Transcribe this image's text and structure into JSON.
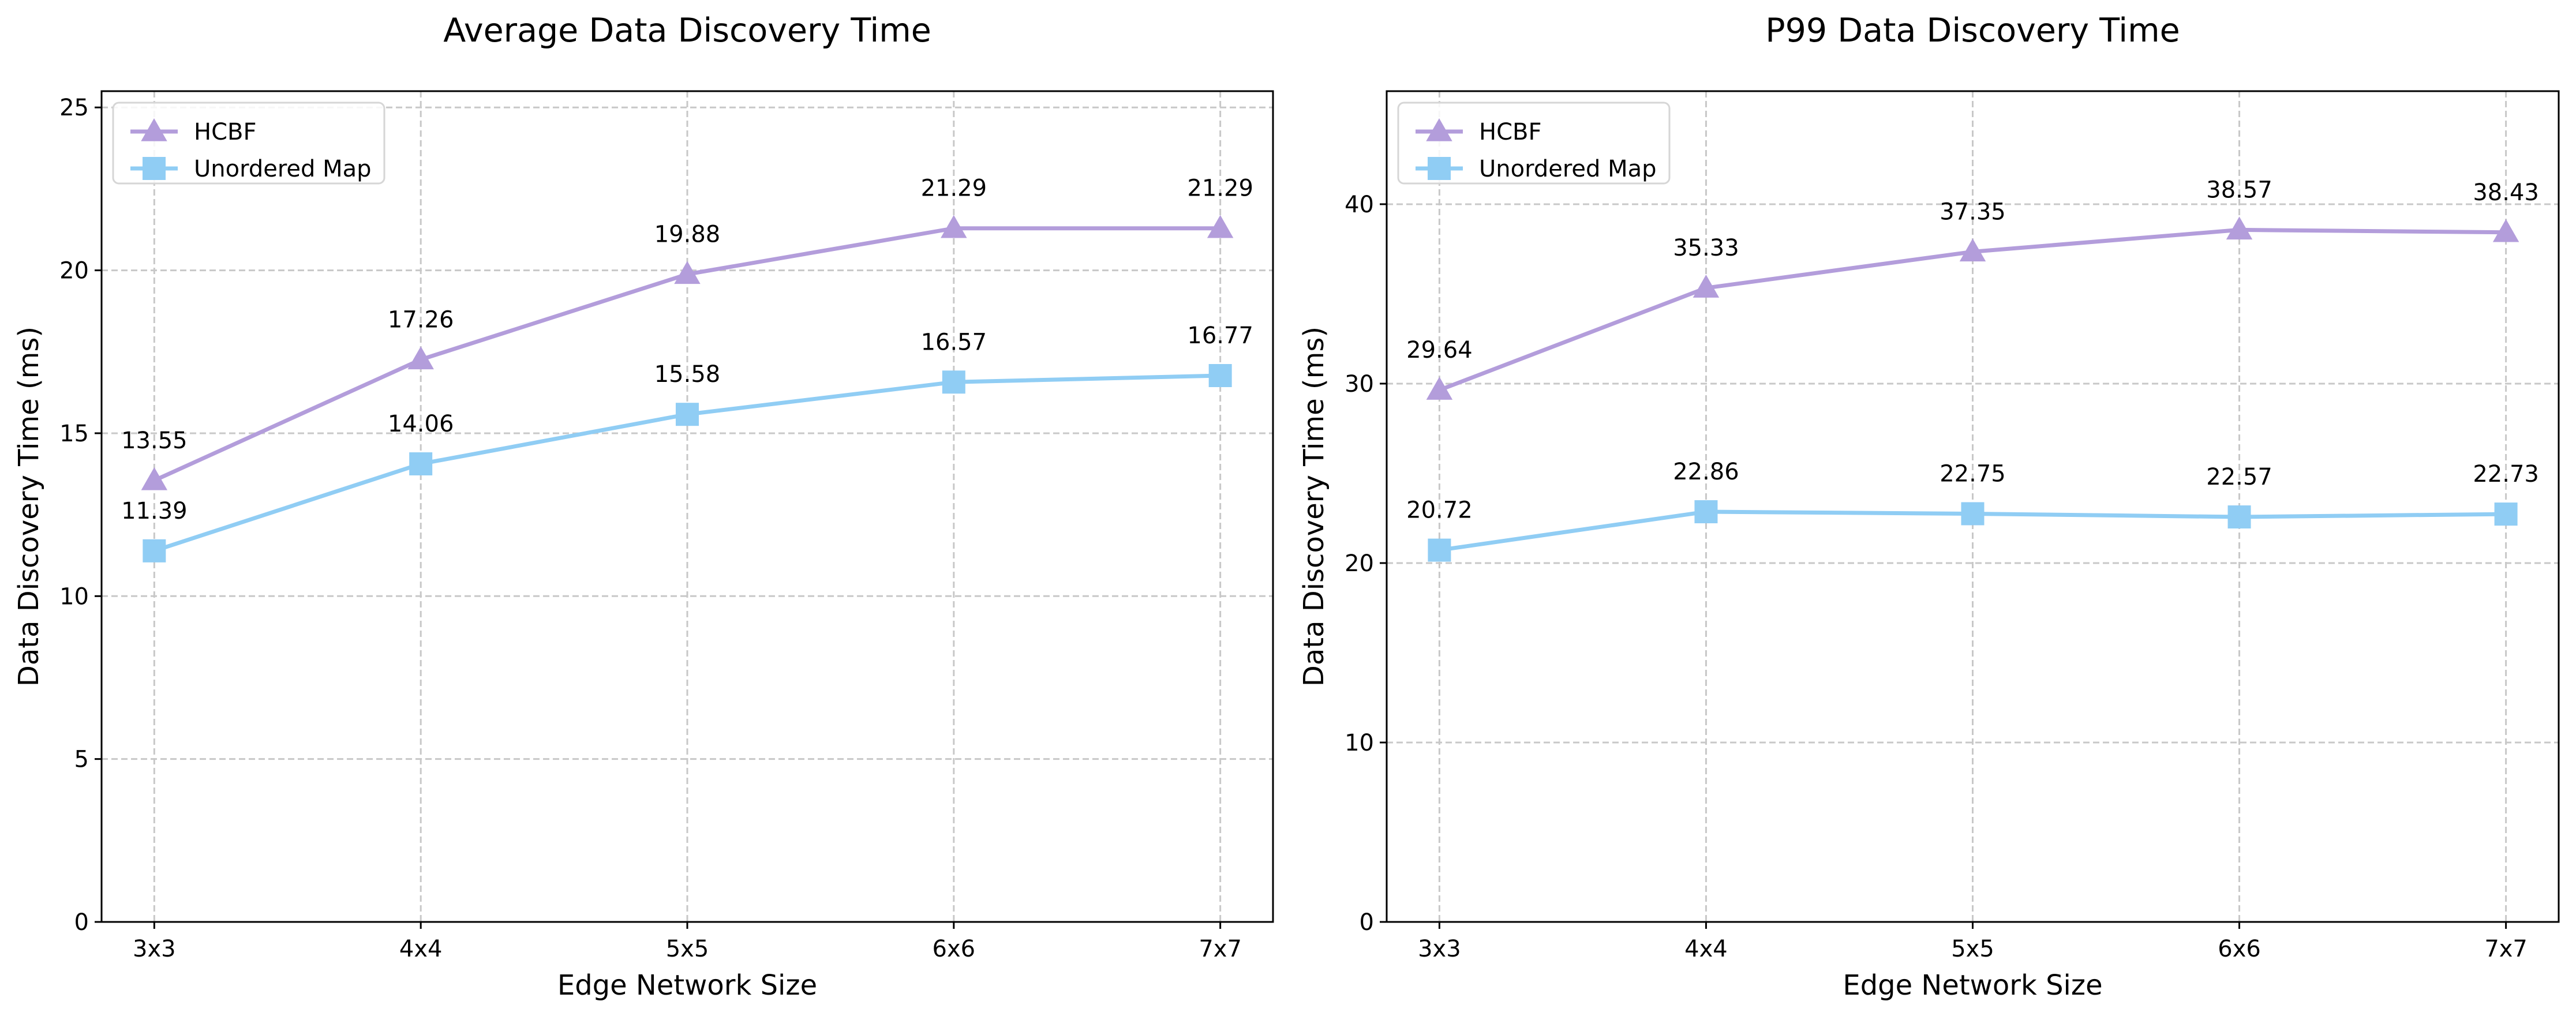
{
  "chart_data": [
    {
      "type": "line",
      "title": "Average Data Discovery Time",
      "xlabel": "Edge Network Size",
      "ylabel": "Data Discovery Time (ms)",
      "categories": [
        "3x3",
        "4x4",
        "5x5",
        "6x6",
        "7x7"
      ],
      "ylim": [
        0,
        25.5
      ],
      "yticks": [
        0,
        5,
        10,
        15,
        20,
        25
      ],
      "grid": true,
      "legend_position": "top-left",
      "series": [
        {
          "name": "HCBF",
          "marker": "triangle",
          "color": "#b39ddb",
          "values": [
            13.55,
            17.26,
            19.88,
            21.29,
            21.29
          ],
          "labels": [
            "13.55",
            "17.26",
            "19.88",
            "21.29",
            "21.29"
          ]
        },
        {
          "name": "Unordered Map",
          "marker": "square",
          "color": "#90cdf4",
          "values": [
            11.39,
            14.06,
            15.58,
            16.57,
            16.77
          ],
          "labels": [
            "11.39",
            "14.06",
            "15.58",
            "16.57",
            "16.77"
          ]
        }
      ]
    },
    {
      "type": "line",
      "title": "P99 Data Discovery Time",
      "xlabel": "Edge Network Size",
      "ylabel": "Data Discovery Time (ms)",
      "categories": [
        "3x3",
        "4x4",
        "5x5",
        "6x6",
        "7x7"
      ],
      "ylim": [
        0,
        46.3
      ],
      "yticks": [
        0,
        10,
        20,
        30,
        40
      ],
      "grid": true,
      "legend_position": "top-left",
      "series": [
        {
          "name": "HCBF",
          "marker": "triangle",
          "color": "#b39ddb",
          "values": [
            29.64,
            35.33,
            37.35,
            38.57,
            38.43
          ],
          "labels": [
            "29.64",
            "35.33",
            "37.35",
            "38.57",
            "38.43"
          ]
        },
        {
          "name": "Unordered Map",
          "marker": "square",
          "color": "#90cdf4",
          "values": [
            20.72,
            22.86,
            22.75,
            22.57,
            22.73
          ],
          "labels": [
            "20.72",
            "22.86",
            "22.75",
            "22.57",
            "22.73"
          ]
        }
      ]
    }
  ]
}
